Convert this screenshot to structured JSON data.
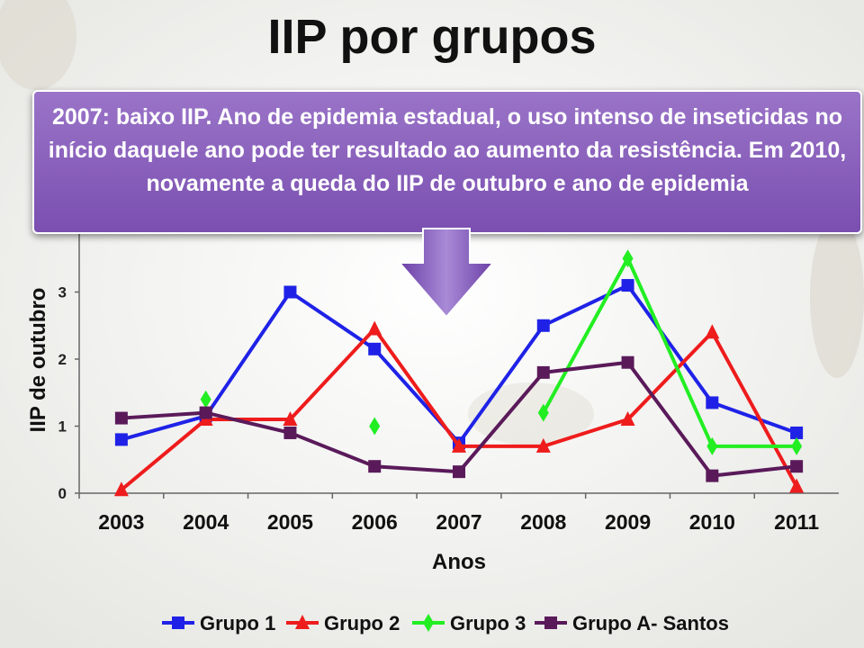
{
  "slide": {
    "title": "IIP por grupos",
    "callout": "2007: baixo IIP. Ano de epidemia estadual, o uso intenso de inseticidas no início daquele ano pode ter resultado ao aumento da resistência. Em 2010, novamente a queda do IIP de outubro e ano de epidemia"
  },
  "chart_data": {
    "type": "line",
    "title": "",
    "xlabel": "Anos",
    "ylabel": "IIP de outubro",
    "categories": [
      "2003",
      "2004",
      "2005",
      "2006",
      "2007",
      "2008",
      "2009",
      "2010",
      "2011"
    ],
    "ylim": [
      0,
      4
    ],
    "yticks": [
      0,
      1,
      2,
      3
    ],
    "grid": false,
    "legend_position": "bottom",
    "series": [
      {
        "name": "Grupo 1",
        "color": "#1f22e6",
        "marker": "square",
        "values": [
          0.8,
          1.15,
          3.0,
          2.15,
          0.75,
          2.5,
          3.1,
          1.35,
          0.9
        ]
      },
      {
        "name": "Grupo 2",
        "color": "#ee1c1c",
        "marker": "triangle",
        "values": [
          0.05,
          1.1,
          1.1,
          2.45,
          0.7,
          0.7,
          1.1,
          2.4,
          0.1
        ]
      },
      {
        "name": "Grupo 3",
        "color": "#22ee22",
        "marker": "diamond",
        "values": [
          null,
          1.4,
          null,
          1.0,
          null,
          1.2,
          3.5,
          0.7,
          0.7
        ]
      },
      {
        "name": "Grupo A- Santos",
        "color": "#5a1a5a",
        "marker": "square",
        "values": [
          1.12,
          1.2,
          0.9,
          0.4,
          0.32,
          1.8,
          1.95,
          0.26,
          0.4
        ]
      }
    ]
  }
}
